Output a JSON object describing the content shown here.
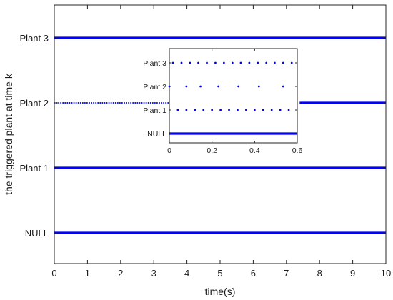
{
  "chart_data": [
    {
      "type": "scatter",
      "xlabel": "time(s)",
      "ylabel": "the triggered plant at time k",
      "xlim": [
        0,
        10
      ],
      "x_ticks": [
        "0",
        "1",
        "2",
        "3",
        "4",
        "5",
        "6",
        "7",
        "8",
        "9",
        "10"
      ],
      "y_categories": [
        "NULL",
        "Plant 1",
        "Plant 2",
        "Plant 3"
      ],
      "marker_color": "#0000ff",
      "series": [
        {
          "category": "Plant 3",
          "x_start": 0,
          "x_end": 10,
          "interval": 0.005,
          "appearance": "continuous"
        },
        {
          "category": "Plant 2",
          "x_start": 0,
          "x_end": 3.45,
          "interval": 0.066,
          "appearance": "dotted"
        },
        {
          "category": "Plant 2",
          "x_start": 7.4,
          "x_end": 10,
          "interval": 0.005,
          "appearance": "continuous"
        },
        {
          "category": "Plant 1",
          "x_start": 0,
          "x_end": 10,
          "interval": 0.01,
          "appearance": "continuous"
        },
        {
          "category": "NULL",
          "x_start": 0,
          "x_end": 10,
          "interval": 0.005,
          "appearance": "continuous"
        }
      ]
    },
    {
      "type": "scatter",
      "role": "inset",
      "xlim": [
        0,
        0.6
      ],
      "x_ticks": [
        "0",
        "0.2",
        "0.4",
        "0.6"
      ],
      "y_categories": [
        "NULL",
        "Plant 1",
        "Plant 2",
        "Plant 3"
      ],
      "marker_color": "#0000ff",
      "series": [
        {
          "category": "Plant 3",
          "x": [
            0.017,
            0.057,
            0.097,
            0.136,
            0.176,
            0.216,
            0.256,
            0.296,
            0.335,
            0.375,
            0.415,
            0.455,
            0.494,
            0.534,
            0.574
          ]
        },
        {
          "category": "Plant 2",
          "x": [
            0.0,
            0.08,
            0.146,
            0.23,
            0.324,
            0.42,
            0.534
          ]
        },
        {
          "category": "Plant 1",
          "x": [
            0.04,
            0.08,
            0.12,
            0.16,
            0.2,
            0.24,
            0.28,
            0.32,
            0.36,
            0.4,
            0.44,
            0.48,
            0.52,
            0.56
          ]
        },
        {
          "category": "NULL",
          "x_start": 0,
          "x_end": 0.6,
          "interval": 0.002,
          "appearance": "continuous"
        }
      ]
    }
  ]
}
